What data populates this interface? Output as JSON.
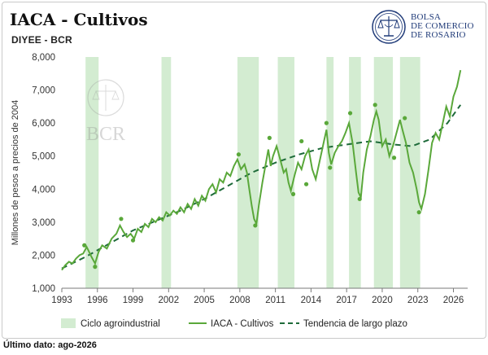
{
  "header": {
    "title": "IACA - Cultivos",
    "subtitle": "DIYEE - BCR",
    "logo_line1": "BOLSA",
    "logo_line2": "DE COMERCIO",
    "logo_line3": "DE ROSARIO",
    "watermark": "BCR"
  },
  "footer": {
    "last_data": "Último dato: ago-2026"
  },
  "colors": {
    "series": "#5aa83a",
    "trend": "#1e6b3a",
    "bands": "#d3ecd1",
    "peaks": "#5aa83a",
    "logo": "#1f3a78"
  },
  "chart_data": {
    "type": "line",
    "ylabel": "Millones de pesos a precios de 2004",
    "ylim": [
      1000,
      8000
    ],
    "xlim": [
      1993,
      2027.2
    ],
    "yticks": [
      1000,
      2000,
      3000,
      4000,
      5000,
      6000,
      7000,
      8000
    ],
    "ytick_labels": [
      "1,000",
      "2,000",
      "3,000",
      "4,000",
      "5,000",
      "6,000",
      "7,000",
      "8,000"
    ],
    "xticks": [
      1993,
      1996,
      1999,
      2002,
      2005,
      2008,
      2011,
      2014,
      2017,
      2020,
      2023,
      2026
    ],
    "xtick_labels": [
      "1993",
      "1996",
      "1999",
      "2002",
      "2005",
      "2008",
      "2011",
      "2014",
      "2017",
      "2020",
      "2023",
      "2026"
    ],
    "legend": {
      "position": "bottom",
      "bands_label": "Ciclo agroindustrial",
      "series_label": "IACA - Cultivos",
      "trend_label": "Tendencia de largo plazo"
    },
    "agro_cycles": [
      [
        1995.0,
        1996.1
      ],
      [
        2001.4,
        2002.2
      ],
      [
        2007.8,
        2009.6
      ],
      [
        2011.2,
        2012.6
      ],
      [
        2015.3,
        2015.9
      ],
      [
        2017.2,
        2018.2
      ],
      [
        2019.3,
        2020.9
      ],
      [
        2021.5,
        2023.2
      ]
    ],
    "series": [
      {
        "name": "IACA - Cultivos",
        "x": [
          1993.0,
          1993.3,
          1993.6,
          1993.9,
          1994.2,
          1994.5,
          1994.8,
          1995.1,
          1995.3,
          1995.5,
          1995.8,
          1996.1,
          1996.4,
          1996.8,
          1997.2,
          1997.6,
          1997.9,
          1998.2,
          1998.5,
          1998.8,
          1999.1,
          1999.4,
          1999.7,
          2000.0,
          2000.3,
          2000.6,
          2000.9,
          2001.2,
          2001.5,
          2001.8,
          2002.1,
          2002.4,
          2002.7,
          2003.0,
          2003.3,
          2003.6,
          2003.9,
          2004.2,
          2004.5,
          2004.8,
          2005.1,
          2005.4,
          2005.7,
          2006.0,
          2006.3,
          2006.6,
          2006.9,
          2007.2,
          2007.5,
          2007.8,
          2008.1,
          2008.4,
          2008.6,
          2008.8,
          2009.0,
          2009.2,
          2009.4,
          2009.6,
          2009.9,
          2010.2,
          2010.4,
          2010.6,
          2010.8,
          2011.1,
          2011.4,
          2011.7,
          2011.9,
          2012.1,
          2012.3,
          2012.6,
          2012.9,
          2013.2,
          2013.5,
          2013.8,
          2014.1,
          2014.4,
          2014.7,
          2015.0,
          2015.3,
          2015.5,
          2015.7,
          2016.0,
          2016.3,
          2016.6,
          2016.9,
          2017.2,
          2017.5,
          2017.8,
          2018.0,
          2018.2,
          2018.4,
          2018.7,
          2019.0,
          2019.3,
          2019.5,
          2019.7,
          2020.0,
          2020.3,
          2020.6,
          2020.9,
          2021.2,
          2021.5,
          2021.7,
          2022.0,
          2022.3,
          2022.6,
          2022.9,
          2023.1,
          2023.3,
          2023.6,
          2023.9,
          2024.2,
          2024.5,
          2024.8,
          2025.1,
          2025.4,
          2025.7,
          2026.0,
          2026.3,
          2026.6
        ],
        "y": [
          1550,
          1700,
          1800,
          1750,
          1900,
          2000,
          2050,
          2250,
          2100,
          1950,
          1750,
          2100,
          2300,
          2200,
          2500,
          2650,
          2900,
          2700,
          2550,
          2650,
          2500,
          2800,
          2700,
          2950,
          2850,
          3100,
          3000,
          3150,
          3050,
          3300,
          3200,
          3350,
          3250,
          3450,
          3300,
          3550,
          3400,
          3700,
          3500,
          3800,
          3650,
          4000,
          4150,
          3900,
          4300,
          4200,
          4500,
          4400,
          4700,
          4900,
          4600,
          4750,
          4500,
          4000,
          3500,
          3100,
          2950,
          3500,
          4200,
          4800,
          5200,
          4700,
          5000,
          5300,
          4900,
          4500,
          4600,
          4200,
          3950,
          4400,
          4800,
          4600,
          5000,
          5200,
          4600,
          4300,
          4800,
          5300,
          5800,
          5100,
          4750,
          5100,
          5300,
          5450,
          5700,
          6000,
          5400,
          4500,
          3900,
          3750,
          4500,
          5200,
          5600,
          6100,
          6350,
          6100,
          5300,
          5500,
          5000,
          5300,
          5700,
          6100,
          5800,
          5400,
          4800,
          4500,
          4000,
          3600,
          3400,
          3850,
          4600,
          5400,
          5700,
          5500,
          6000,
          6500,
          6200,
          6800,
          7100,
          7600
        ]
      },
      {
        "name": "Tendencia de largo plazo",
        "x": [
          1993,
          1995,
          1997,
          1999,
          2001,
          2003,
          2005,
          2007,
          2009,
          2011,
          2013,
          2015,
          2017,
          2019,
          2021,
          2022.5,
          2024,
          2025.5,
          2026.6
        ],
        "y": [
          1600,
          1950,
          2350,
          2750,
          3050,
          3350,
          3700,
          4100,
          4500,
          4800,
          5050,
          5250,
          5350,
          5450,
          5350,
          5300,
          5500,
          6000,
          6550
        ]
      }
    ],
    "peaks": {
      "x": [
        1994.9,
        1995.8,
        1998.0,
        1999.0,
        2007.9,
        2009.3,
        2010.5,
        2012.5,
        2013.2,
        2013.6,
        2015.3,
        2015.6,
        2017.3,
        2018.1,
        2019.4,
        2021.0,
        2021.9,
        2023.1
      ],
      "y": [
        2300,
        1650,
        3100,
        2450,
        5050,
        2900,
        5550,
        3850,
        5450,
        4150,
        6000,
        4650,
        6300,
        3700,
        6550,
        4950,
        6150,
        3300
      ]
    }
  }
}
